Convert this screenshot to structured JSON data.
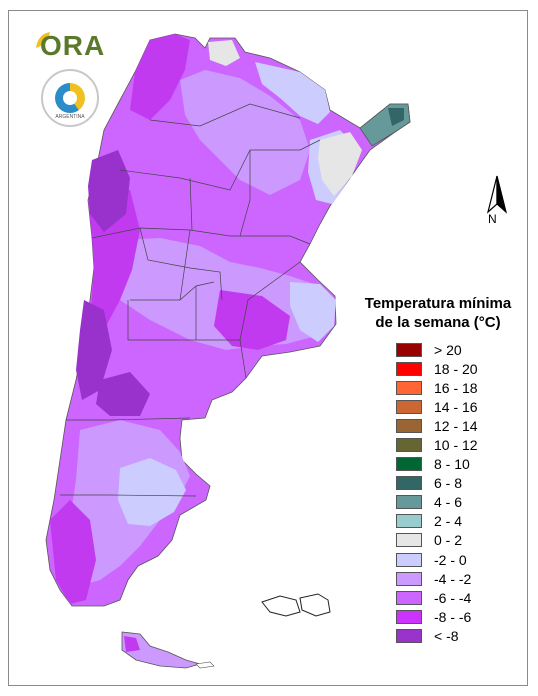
{
  "header": {
    "logo_text": "ORA",
    "seal_text": "ARGENTINA"
  },
  "map": {
    "north_label": "N",
    "fill_colors": {
      "lt_minus8": "#9932cc",
      "m8_m6": "#c23af0",
      "m6_m4": "#cc66ff",
      "m4_m2": "#cc99ff",
      "m2_0": "#ccccff",
      "zero_two": "#e6e6e6",
      "four_six": "#669999",
      "six_eight": "#336666"
    }
  },
  "legend": {
    "title_line1": "Temperatura mínima",
    "title_line2": "de la semana (°C)",
    "items": [
      {
        "label": "> 20",
        "color": "#990000"
      },
      {
        "label": "18 - 20",
        "color": "#ff0000"
      },
      {
        "label": "16 - 18",
        "color": "#ff6633"
      },
      {
        "label": "14 - 16",
        "color": "#cc6633"
      },
      {
        "label": "12 - 14",
        "color": "#996633"
      },
      {
        "label": "10 - 12",
        "color": "#666633"
      },
      {
        "label": "8 - 10",
        "color": "#006633"
      },
      {
        "label": "6 - 8",
        "color": "#336666"
      },
      {
        "label": "4 - 6",
        "color": "#669999"
      },
      {
        "label": "2 - 4",
        "color": "#99cccc"
      },
      {
        "label": "0 - 2",
        "color": "#e6e6e6"
      },
      {
        "label": "-2 - 0",
        "color": "#ccccff"
      },
      {
        "label": "-4 - -2",
        "color": "#cc99ff"
      },
      {
        "label": "-6 - -4",
        "color": "#cc66ff"
      },
      {
        "label": "-8 - -6",
        "color": "#cc33ff"
      },
      {
        "label": "< -8",
        "color": "#9933cc"
      }
    ]
  }
}
